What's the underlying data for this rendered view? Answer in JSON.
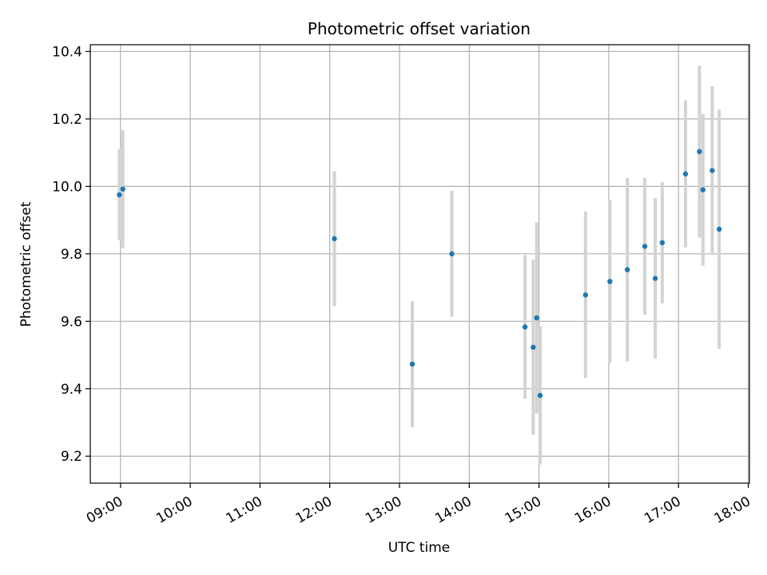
{
  "chart_data": {
    "type": "scatter",
    "title": "Photometric offset variation",
    "xlabel": "UTC time",
    "ylabel": "Photometric offset",
    "x_tick_labels": [
      "09:00",
      "10:00",
      "11:00",
      "12:00",
      "13:00",
      "14:00",
      "15:00",
      "16:00",
      "17:00",
      "18:00"
    ],
    "y_tick_labels": [
      "9.2",
      "9.4",
      "9.6",
      "9.8",
      "10.0",
      "10.2",
      "10.4"
    ],
    "y_ticks": [
      9.2,
      9.4,
      9.6,
      9.8,
      10.0,
      10.2,
      10.4
    ],
    "xlim": [
      "08:34",
      "18:01"
    ],
    "ylim": [
      9.12,
      10.42
    ],
    "grid": true,
    "colors": {
      "marker": "#1f77b4",
      "errorbar": "#d3d3d3",
      "grid": "#b0b0b0"
    },
    "points": [
      {
        "x": "08:59",
        "y": 9.975,
        "yerr": 0.135
      },
      {
        "x": "09:02",
        "y": 9.992,
        "yerr": 0.175
      },
      {
        "x": "12:04",
        "y": 9.845,
        "yerr": 0.2
      },
      {
        "x": "13:11",
        "y": 9.473,
        "yerr": 0.187
      },
      {
        "x": "13:45",
        "y": 9.8,
        "yerr": 0.187
      },
      {
        "x": "14:48",
        "y": 9.583,
        "yerr": 0.213
      },
      {
        "x": "14:55",
        "y": 9.523,
        "yerr": 0.26
      },
      {
        "x": "14:58",
        "y": 9.61,
        "yerr": 0.283
      },
      {
        "x": "15:01",
        "y": 9.38,
        "yerr": 0.205
      },
      {
        "x": "15:40",
        "y": 9.678,
        "yerr": 0.247
      },
      {
        "x": "16:01",
        "y": 9.718,
        "yerr": 0.242
      },
      {
        "x": "16:16",
        "y": 9.753,
        "yerr": 0.272
      },
      {
        "x": "16:31",
        "y": 9.822,
        "yerr": 0.203
      },
      {
        "x": "16:40",
        "y": 9.727,
        "yerr": 0.238
      },
      {
        "x": "16:46",
        "y": 9.833,
        "yerr": 0.18
      },
      {
        "x": "17:06",
        "y": 10.037,
        "yerr": 0.218
      },
      {
        "x": "17:18",
        "y": 10.103,
        "yerr": 0.255
      },
      {
        "x": "17:21",
        "y": 9.99,
        "yerr": 0.225
      },
      {
        "x": "17:29",
        "y": 10.047,
        "yerr": 0.25
      },
      {
        "x": "17:35",
        "y": 9.873,
        "yerr": 0.355
      }
    ]
  }
}
